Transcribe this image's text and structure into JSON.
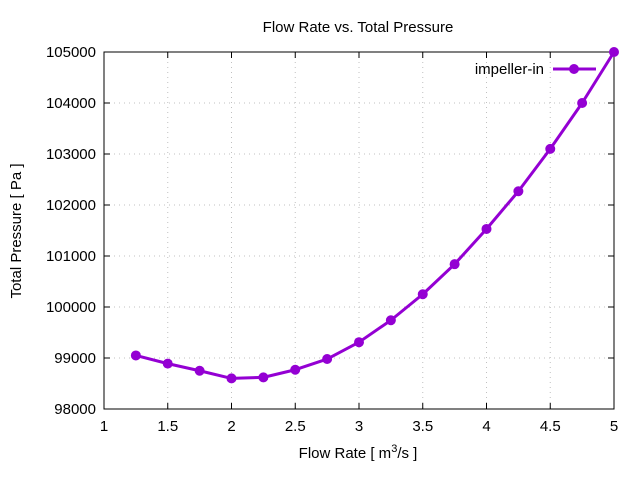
{
  "chart_data": {
    "type": "line",
    "title": "Flow Rate vs. Total Pressure",
    "xlabel_main": "Flow Rate [ m",
    "xlabel_sup": "3",
    "xlabel_tail": "/s ]",
    "ylabel": "Total Pressure [ Pa ]",
    "xlim": [
      1,
      5
    ],
    "ylim": [
      98000,
      105000
    ],
    "xticks": [
      1,
      1.5,
      2,
      2.5,
      3,
      3.5,
      4,
      4.5,
      5
    ],
    "xtick_labels": [
      "1",
      "1.5",
      "2",
      "2.5",
      "3",
      "3.5",
      "4",
      "4.5",
      "5"
    ],
    "yticks": [
      98000,
      99000,
      100000,
      101000,
      102000,
      103000,
      104000,
      105000
    ],
    "ytick_labels": [
      "98000",
      "99000",
      "100000",
      "101000",
      "102000",
      "103000",
      "104000",
      "105000"
    ],
    "grid": true,
    "legend_position": "top-right",
    "series": [
      {
        "name": "impeller-in",
        "color": "#9400d3",
        "x": [
          1.25,
          1.5,
          1.75,
          2,
          2.25,
          2.5,
          2.75,
          3,
          3.25,
          3.5,
          3.75,
          4,
          4.25,
          4.5,
          4.75,
          5
        ],
        "values": [
          99050,
          98890,
          98750,
          98600,
          98620,
          98770,
          98980,
          99310,
          99740,
          100250,
          100840,
          101530,
          102270,
          103100,
          104000,
          105000
        ]
      }
    ]
  }
}
